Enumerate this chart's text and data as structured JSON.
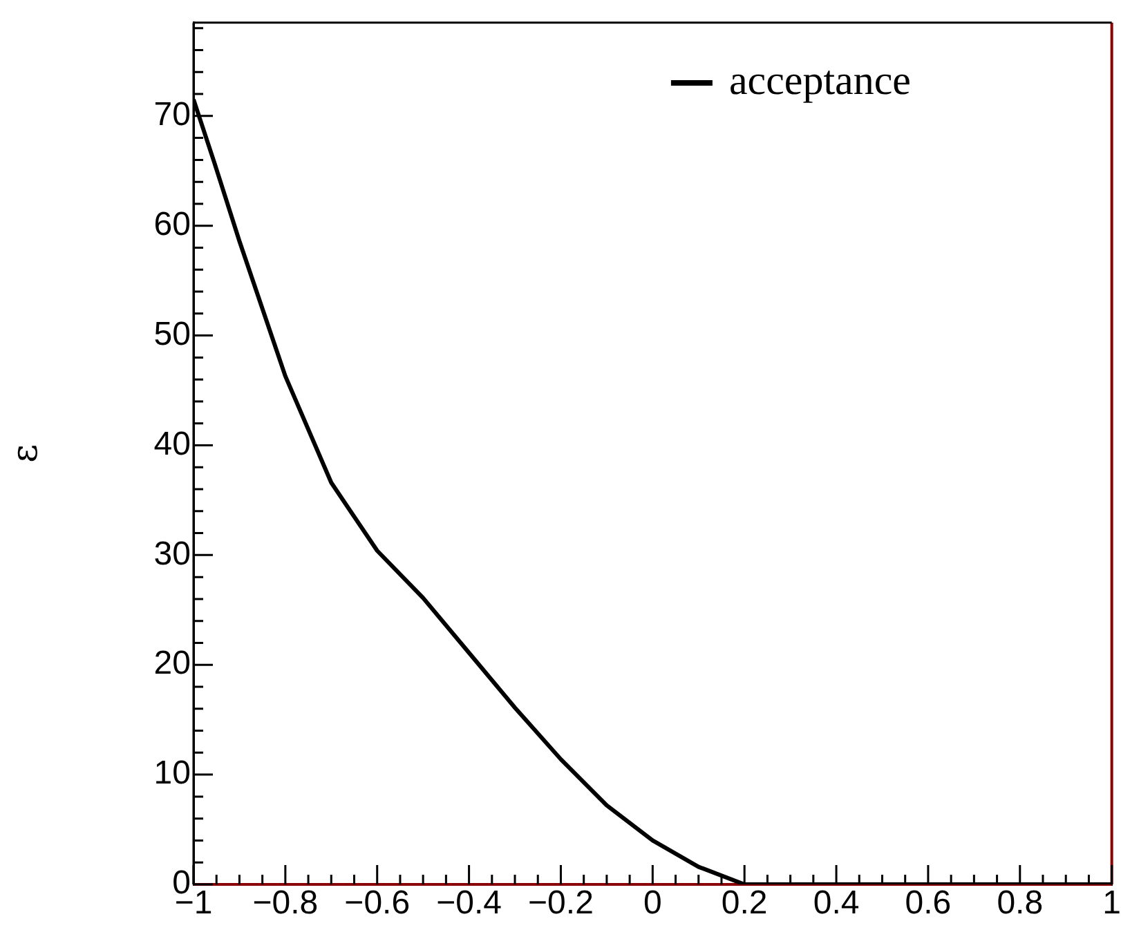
{
  "chart_data": {
    "type": "line",
    "ylabel": "ε",
    "x": [
      -1,
      -0.955,
      -0.9,
      -0.8,
      -0.7,
      -0.6,
      -0.5,
      -0.4,
      -0.3,
      -0.2,
      -0.1,
      0,
      0.1,
      0.2,
      0.3,
      0.4,
      0.6,
      0.8,
      1
    ],
    "series": [
      {
        "name": "acceptance",
        "color": "#000000",
        "values": [
          71.5,
          65.8,
          58.6,
          46.3,
          36.6,
          30.4,
          26.1,
          21.1,
          16.1,
          11.4,
          7.2,
          4.0,
          1.6,
          0,
          0,
          0,
          0,
          0,
          0
        ]
      }
    ],
    "xlim": [
      -1,
      1
    ],
    "xticks": [
      {
        "value": -1,
        "label": "−1"
      },
      {
        "value": -0.8,
        "label": "−0.8"
      },
      {
        "value": -0.6,
        "label": "−0.6"
      },
      {
        "value": -0.4,
        "label": "−0.4"
      },
      {
        "value": -0.2,
        "label": "−0.2"
      },
      0,
      0.2,
      0.4,
      0.6,
      0.8,
      1
    ],
    "ylim": [
      0,
      78.5
    ],
    "yticks": [
      0,
      10,
      20,
      30,
      40,
      50,
      60,
      70
    ],
    "ref_lines": [
      {
        "axis": "y",
        "value": 0,
        "color": "#8b0000"
      },
      {
        "axis": "x",
        "value": 1,
        "color": "#8b0000"
      }
    ],
    "legend": "top right",
    "grid": false,
    "marker": "none",
    "line_style": "solid"
  }
}
